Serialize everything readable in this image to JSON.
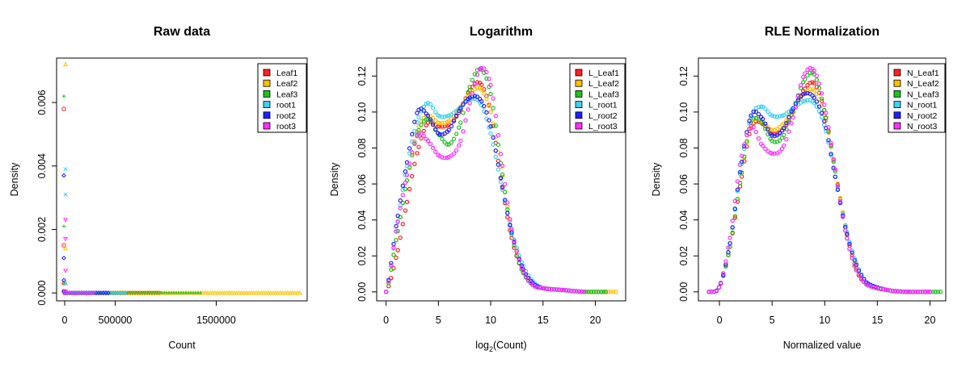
{
  "chart_data": [
    {
      "type": "scatter",
      "title": "Raw data",
      "xlabel": "Count",
      "ylabel": "Density",
      "xlim": [
        -80000,
        2400000
      ],
      "ylim": [
        -0.00025,
        0.0074
      ],
      "xticks": [
        0,
        500000,
        1500000
      ],
      "xtick_labels": [
        "0",
        "500000",
        "1500000"
      ],
      "yticks": [
        0.0,
        0.002,
        0.004,
        0.006
      ],
      "ytick_labels": [
        "0.000",
        "0.002",
        "0.004",
        "0.006"
      ],
      "legend_position": "top-right",
      "series": [
        {
          "name": "Leaf1",
          "color": "#ff2020",
          "marker": "o",
          "points": [
            [
              0,
              0.0058
            ],
            [
              0,
              0.0015
            ],
            [
              0,
              0.0003
            ],
            [
              0,
              5e-05
            ]
          ],
          "tail": [
            [
              0,
              0
            ],
            [
              950000,
              0
            ]
          ]
        },
        {
          "name": "Leaf2",
          "color": "#ffc000",
          "marker": "^",
          "points": [
            [
              0,
              0.0072
            ],
            [
              0,
              0.0014
            ],
            [
              0,
              0.0003
            ],
            [
              0,
              5e-05
            ]
          ],
          "tail": [
            [
              0,
              0
            ],
            [
              2350000,
              0
            ]
          ]
        },
        {
          "name": "Leaf3",
          "color": "#20c020",
          "marker": "+",
          "points": [
            [
              0,
              0.0062
            ],
            [
              0,
              0.0021
            ],
            [
              0,
              0.0003
            ],
            [
              0,
              5e-05
            ]
          ],
          "tail": [
            [
              0,
              0
            ],
            [
              1350000,
              0
            ]
          ]
        },
        {
          "name": "root1",
          "color": "#40d0f0",
          "marker": "x",
          "points": [
            [
              0,
              0.0039
            ],
            [
              0,
              0.0031
            ],
            [
              0,
              0.0003
            ],
            [
              0,
              5e-05
            ]
          ],
          "tail": [
            [
              0,
              0
            ],
            [
              600000,
              0
            ]
          ]
        },
        {
          "name": "root2",
          "color": "#2020ff",
          "marker": "d",
          "points": [
            [
              0,
              0.0037
            ],
            [
              0,
              0.0011
            ],
            [
              0,
              0.0004
            ],
            [
              0,
              5e-05
            ]
          ],
          "tail": [
            [
              0,
              0
            ],
            [
              450000,
              0
            ]
          ]
        },
        {
          "name": "root3",
          "color": "#ff30ff",
          "marker": "v",
          "points": [
            [
              0,
              0.0023
            ],
            [
              0,
              0.0017
            ],
            [
              0,
              0.0007
            ],
            [
              0,
              5e-05
            ]
          ],
          "tail": [
            [
              0,
              0
            ],
            [
              300000,
              0
            ]
          ]
        }
      ]
    },
    {
      "type": "line",
      "title": "Logarithm",
      "xlabel_main": "log",
      "xlabel_sub": "2",
      "xlabel_rest": "(Count)",
      "ylabel": "Density",
      "xlim": [
        -0.9,
        22.9
      ],
      "ylim": [
        -0.005,
        0.13
      ],
      "xticks": [
        0,
        5,
        10,
        15,
        20
      ],
      "xtick_labels": [
        "0",
        "5",
        "10",
        "15",
        "20"
      ],
      "yticks": [
        0.0,
        0.02,
        0.04,
        0.06,
        0.08,
        0.1,
        0.12
      ],
      "ytick_labels": [
        "0.00",
        "0.02",
        "0.04",
        "0.06",
        "0.08",
        "0.10",
        "0.12"
      ],
      "legend_position": "top-right",
      "series": [
        {
          "name": "L_Leaf1",
          "color": "#ff2020",
          "x": [
            0,
            1,
            2,
            3,
            4,
            5,
            6,
            7,
            8,
            9,
            10,
            11,
            12,
            13,
            14,
            15,
            17,
            19,
            21
          ],
          "y": [
            0,
            0.02,
            0.05,
            0.078,
            0.094,
            0.092,
            0.093,
            0.1,
            0.112,
            0.116,
            0.1,
            0.062,
            0.03,
            0.012,
            0.004,
            0.002,
            0.001,
            0,
            0
          ]
        },
        {
          "name": "L_Leaf2",
          "color": "#ffc000",
          "x": [
            0,
            1,
            2,
            3,
            4,
            5,
            6,
            7,
            8,
            9,
            10,
            11,
            12,
            13,
            14,
            15,
            17,
            19,
            21,
            22
          ],
          "y": [
            0,
            0.03,
            0.062,
            0.09,
            0.098,
            0.094,
            0.095,
            0.102,
            0.11,
            0.113,
            0.1,
            0.068,
            0.035,
            0.014,
            0.004,
            0.002,
            0.001,
            0,
            0,
            0
          ]
        },
        {
          "name": "L_Leaf3",
          "color": "#20c020",
          "x": [
            0,
            1,
            2,
            3,
            4,
            5,
            6,
            7,
            8,
            9,
            10,
            11,
            12,
            13,
            14,
            15,
            17,
            19,
            21
          ],
          "y": [
            0,
            0.03,
            0.062,
            0.088,
            0.096,
            0.088,
            0.082,
            0.092,
            0.114,
            0.124,
            0.11,
            0.07,
            0.032,
            0.012,
            0.004,
            0.002,
            0.001,
            0,
            0
          ]
        },
        {
          "name": "L_root1",
          "color": "#40d0f0",
          "x": [
            0,
            1,
            2,
            3,
            4,
            5,
            6,
            7,
            8,
            9,
            10,
            11,
            12,
            13,
            14,
            15,
            17,
            19
          ],
          "y": [
            0,
            0.035,
            0.07,
            0.095,
            0.105,
            0.098,
            0.098,
            0.102,
            0.107,
            0.105,
            0.088,
            0.06,
            0.034,
            0.016,
            0.006,
            0.002,
            0.001,
            0
          ]
        },
        {
          "name": "L_root2",
          "color": "#2020ff",
          "x": [
            0,
            1,
            2,
            3,
            4,
            5,
            6,
            7,
            8,
            9,
            10,
            11,
            12,
            13,
            14,
            15,
            17,
            19
          ],
          "y": [
            0,
            0.038,
            0.072,
            0.1,
            0.098,
            0.088,
            0.09,
            0.101,
            0.108,
            0.107,
            0.092,
            0.062,
            0.033,
            0.014,
            0.005,
            0.002,
            0.001,
            0
          ]
        },
        {
          "name": "L_root3",
          "color": "#ff30ff",
          "x": [
            0,
            1,
            2,
            3,
            4,
            5,
            6,
            7,
            8,
            9,
            10,
            11,
            12,
            13,
            14,
            15,
            17,
            19
          ],
          "y": [
            0,
            0.035,
            0.065,
            0.087,
            0.084,
            0.076,
            0.075,
            0.082,
            0.105,
            0.124,
            0.115,
            0.075,
            0.035,
            0.013,
            0.004,
            0.002,
            0.001,
            0
          ]
        }
      ]
    },
    {
      "type": "line",
      "title": "RLE Normalization",
      "xlabel": "Normalized value",
      "ylabel": "Density",
      "xlim": [
        -2.0,
        21.5
      ],
      "ylim": [
        -0.005,
        0.13
      ],
      "xticks": [
        0,
        5,
        10,
        15,
        20
      ],
      "xtick_labels": [
        "0",
        "5",
        "10",
        "15",
        "20"
      ],
      "yticks": [
        0.0,
        0.02,
        0.04,
        0.06,
        0.08,
        0.1,
        0.12
      ],
      "ytick_labels": [
        "0.00",
        "0.02",
        "0.04",
        "0.06",
        "0.08",
        "0.10",
        "0.12"
      ],
      "legend_position": "top-right",
      "series": [
        {
          "name": "N_Leaf1",
          "color": "#ff2020",
          "x": [
            -1,
            0,
            1,
            2,
            3,
            4,
            5,
            6,
            7,
            8,
            9,
            10,
            11,
            12,
            13,
            14,
            16,
            18,
            20
          ],
          "y": [
            0,
            0.003,
            0.025,
            0.06,
            0.091,
            0.094,
            0.088,
            0.09,
            0.1,
            0.112,
            0.116,
            0.1,
            0.068,
            0.035,
            0.013,
            0.004,
            0.001,
            0,
            0
          ]
        },
        {
          "name": "N_Leaf2",
          "color": "#ffc000",
          "x": [
            -1,
            0,
            1,
            2,
            3,
            4,
            5,
            6,
            7,
            8,
            9,
            10,
            11,
            12,
            13,
            14,
            16,
            18,
            20
          ],
          "y": [
            0,
            0.003,
            0.025,
            0.062,
            0.093,
            0.095,
            0.09,
            0.093,
            0.101,
            0.11,
            0.112,
            0.098,
            0.068,
            0.036,
            0.014,
            0.004,
            0.001,
            0,
            0
          ]
        },
        {
          "name": "N_Leaf3",
          "color": "#20c020",
          "x": [
            -1,
            0,
            1,
            2,
            3,
            4,
            5,
            6,
            7,
            8,
            9,
            10,
            11,
            12,
            13,
            14,
            16,
            18,
            21
          ],
          "y": [
            0,
            0.003,
            0.025,
            0.062,
            0.094,
            0.094,
            0.084,
            0.086,
            0.101,
            0.117,
            0.121,
            0.1,
            0.067,
            0.033,
            0.012,
            0.004,
            0.001,
            0,
            0
          ]
        },
        {
          "name": "N_root1",
          "color": "#40d0f0",
          "x": [
            -1,
            0,
            1,
            2,
            3,
            4,
            5,
            6,
            7,
            8,
            9,
            10,
            11,
            12,
            13,
            14,
            16,
            18,
            20
          ],
          "y": [
            0,
            0.003,
            0.027,
            0.067,
            0.097,
            0.103,
            0.098,
            0.098,
            0.102,
            0.106,
            0.105,
            0.092,
            0.064,
            0.036,
            0.016,
            0.005,
            0.001,
            0,
            0
          ]
        },
        {
          "name": "N_root2",
          "color": "#2020ff",
          "x": [
            -1,
            0,
            1,
            2,
            3,
            4,
            5,
            6,
            7,
            8,
            9,
            10,
            11,
            12,
            13,
            14,
            16,
            18,
            20
          ],
          "y": [
            0,
            0.003,
            0.027,
            0.068,
            0.098,
            0.097,
            0.087,
            0.09,
            0.102,
            0.11,
            0.108,
            0.094,
            0.064,
            0.035,
            0.015,
            0.005,
            0.001,
            0,
            0
          ]
        },
        {
          "name": "N_root3",
          "color": "#ff30ff",
          "x": [
            -1,
            0,
            1,
            2,
            3,
            4,
            5,
            6,
            7,
            8,
            9,
            10,
            11,
            12,
            13,
            14,
            16,
            18,
            20
          ],
          "y": [
            0,
            0.003,
            0.03,
            0.072,
            0.092,
            0.082,
            0.077,
            0.08,
            0.097,
            0.12,
            0.123,
            0.103,
            0.068,
            0.033,
            0.012,
            0.004,
            0.001,
            0,
            0
          ]
        }
      ]
    }
  ]
}
